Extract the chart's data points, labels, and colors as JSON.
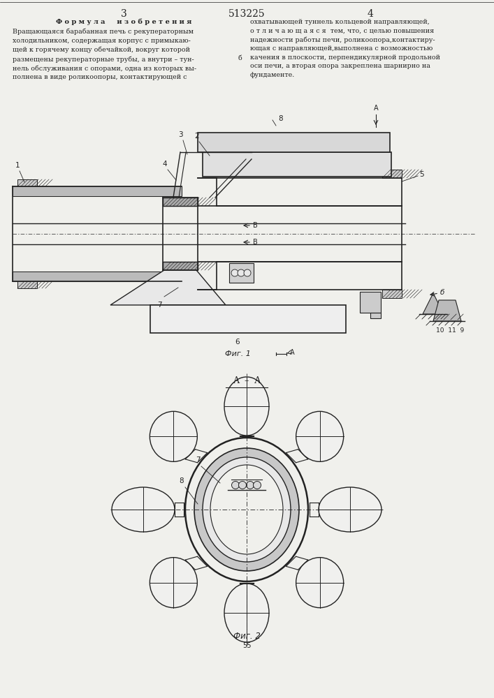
{
  "bg_color": "#f0f0ec",
  "line_color": "#222222",
  "page_num_left": "3",
  "patent_num": "513225",
  "page_num_right": "4",
  "text_col1_title": "Ф о р м у л а     и з о б р е т е н и я",
  "text_col1_body": "Вращающаяся барабанная печь с рекуператорным\nхолодильником, содержащая корпус с примыкаю-\nщей к горячему концу обечайкой, вокруг которой\nразмещены рекуператорные трубы, а внутри – тун-\nнель обслуживания с опорами, одна из которых вы-\nполнена в виде роликоопоры, контактирующей с",
  "text_col2_body": "охватывающей туннель кольцевой направляющей,\nо т л и ч а ю щ а я с я  тем, что, с целью повышения\nнадежности работы печи, роликоопора,контактиру-\nющая с направляющей,выполнена с возможностью\nкачения в плоскости, перпендикулярной продольной\nоси печи, а вторая опора закреплена шарнирно на\nфундаменте.",
  "fig1_label": "Фиг. 1",
  "fig2_label": "Фиг. 2",
  "fig2_bottom_num": "55"
}
